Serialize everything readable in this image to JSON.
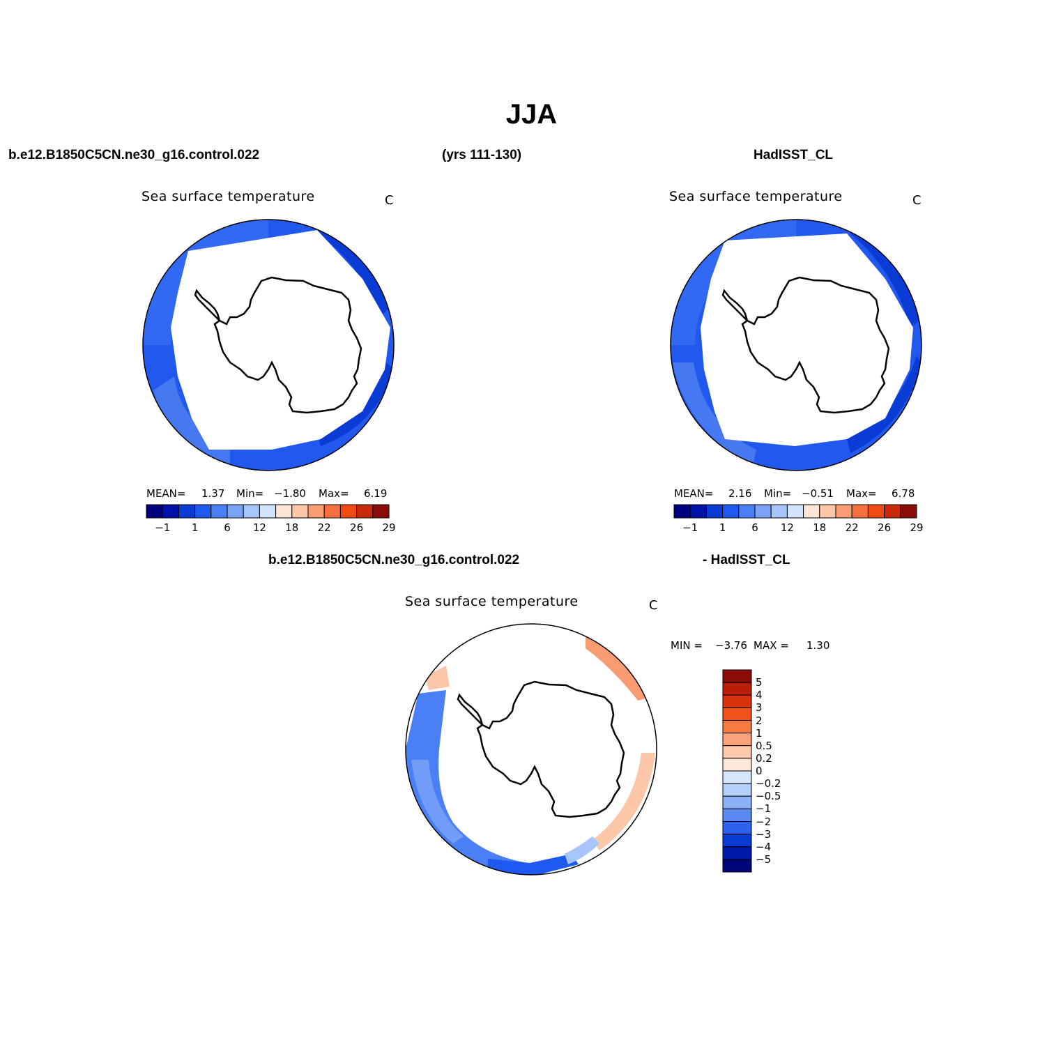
{
  "title": "JJA",
  "header": {
    "case_name": "b.e12.B1850C5CN.ne30_g16.control.022",
    "years": "(yrs 111-130)",
    "obs_name": "HadISST_CL"
  },
  "diff_header": {
    "left": "b.e12.B1850C5CN.ne30_g16.control.022",
    "right": "- HadISST_CL"
  },
  "colors": {
    "scale": [
      "#00007f",
      "#0012a8",
      "#0b3bd5",
      "#1f5af0",
      "#4a7ff5",
      "#7ba4f8",
      "#a6c6fb",
      "#d2e4fd",
      "#fde6d6",
      "#fcc6a8",
      "#f99b73",
      "#f5703f",
      "#f04a15",
      "#c92a0b",
      "#8a0c07"
    ],
    "land": "#ffffff",
    "coast": "#000000"
  },
  "panels": [
    {
      "id": "model",
      "title": "Sea surface temperature",
      "units": "C",
      "mean_label": "MEAN=",
      "mean": "1.37",
      "min_label": "Min=",
      "min": "−1.80",
      "max_label": "Max=",
      "max": "6.19",
      "colorbar_ticks": [
        "−1",
        "1",
        "6",
        "12",
        "18",
        "22",
        "26",
        "29"
      ]
    },
    {
      "id": "obs",
      "title": "Sea surface temperature",
      "units": "C",
      "mean_label": "MEAN=",
      "mean": "2.16",
      "min_label": "Min=",
      "min": "−0.51",
      "max_label": "Max=",
      "max": "6.78",
      "colorbar_ticks": [
        "−1",
        "1",
        "6",
        "12",
        "18",
        "22",
        "26",
        "29"
      ]
    }
  ],
  "diff_panel": {
    "title": "Sea surface temperature",
    "units": "C",
    "min_label": "MIN =",
    "min": "−3.76",
    "max_label": "MAX =",
    "max": "1.30",
    "colorbar_ticks": [
      "5",
      "4",
      "3",
      "2",
      "1",
      "0.5",
      "0.2",
      "0",
      "−0.2",
      "−0.5",
      "−1",
      "−2",
      "−3",
      "−4",
      "−5"
    ],
    "colorbar_colors": [
      "#8a0c07",
      "#b81e08",
      "#d9330c",
      "#f0531a",
      "#f77a43",
      "#fba27a",
      "#fdc9aa",
      "#fee8da",
      "#d6e6fc",
      "#b3cef9",
      "#8cb1f7",
      "#5b8af3",
      "#2c62ec",
      "#0a3bd2",
      "#0018a6",
      "#00067a"
    ]
  }
}
